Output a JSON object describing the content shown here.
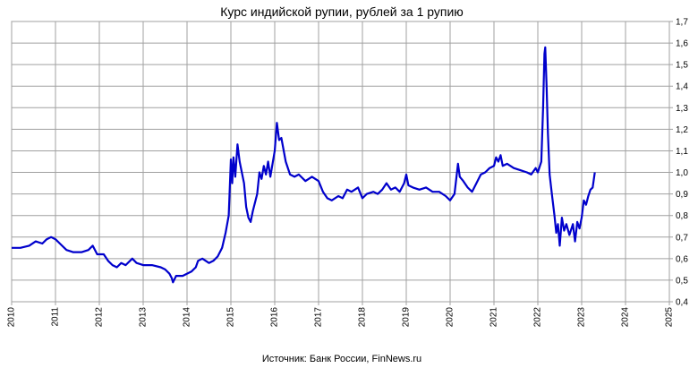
{
  "chart_data": {
    "type": "line",
    "title": "Курс индийской рупии, рублей за 1 рупию",
    "source": "Источник: Банк России, FinNews.ru",
    "xlabel": "",
    "ylabel": "",
    "xlim": [
      2010,
      2025
    ],
    "ylim": [
      0.4,
      1.7
    ],
    "grid": true,
    "y_axis_side": "right",
    "legend": "none",
    "x_ticks": [
      "2010",
      "2011",
      "2012",
      "2013",
      "2014",
      "2015",
      "2016",
      "2017",
      "2018",
      "2019",
      "2020",
      "2021",
      "2022",
      "2023",
      "2024",
      "2025"
    ],
    "y_ticks": [
      "0,4",
      "0,5",
      "0,6",
      "0,7",
      "0,8",
      "0,9",
      "1,0",
      "1,1",
      "1,2",
      "1,3",
      "1,4",
      "1,5",
      "1,6",
      "1,7"
    ],
    "series": [
      {
        "color": "#0000cc",
        "points": [
          [
            2010.0,
            0.65
          ],
          [
            2010.2,
            0.65
          ],
          [
            2010.4,
            0.66
          ],
          [
            2010.55,
            0.68
          ],
          [
            2010.7,
            0.67
          ],
          [
            2010.8,
            0.69
          ],
          [
            2010.9,
            0.7
          ],
          [
            2011.0,
            0.69
          ],
          [
            2011.1,
            0.67
          ],
          [
            2011.25,
            0.64
          ],
          [
            2011.4,
            0.63
          ],
          [
            2011.6,
            0.63
          ],
          [
            2011.75,
            0.64
          ],
          [
            2011.85,
            0.66
          ],
          [
            2011.95,
            0.62
          ],
          [
            2012.1,
            0.62
          ],
          [
            2012.2,
            0.59
          ],
          [
            2012.3,
            0.57
          ],
          [
            2012.4,
            0.56
          ],
          [
            2012.5,
            0.58
          ],
          [
            2012.6,
            0.57
          ],
          [
            2012.75,
            0.6
          ],
          [
            2012.85,
            0.58
          ],
          [
            2013.0,
            0.57
          ],
          [
            2013.2,
            0.57
          ],
          [
            2013.4,
            0.56
          ],
          [
            2013.5,
            0.55
          ],
          [
            2013.6,
            0.53
          ],
          [
            2013.65,
            0.51
          ],
          [
            2013.68,
            0.49
          ],
          [
            2013.75,
            0.52
          ],
          [
            2013.9,
            0.52
          ],
          [
            2014.1,
            0.54
          ],
          [
            2014.2,
            0.56
          ],
          [
            2014.25,
            0.59
          ],
          [
            2014.35,
            0.6
          ],
          [
            2014.5,
            0.58
          ],
          [
            2014.6,
            0.59
          ],
          [
            2014.7,
            0.61
          ],
          [
            2014.8,
            0.65
          ],
          [
            2014.88,
            0.72
          ],
          [
            2014.95,
            0.8
          ],
          [
            2015.0,
            1.06
          ],
          [
            2015.03,
            0.95
          ],
          [
            2015.06,
            1.07
          ],
          [
            2015.1,
            0.98
          ],
          [
            2015.15,
            1.13
          ],
          [
            2015.2,
            1.05
          ],
          [
            2015.3,
            0.95
          ],
          [
            2015.35,
            0.84
          ],
          [
            2015.4,
            0.79
          ],
          [
            2015.45,
            0.77
          ],
          [
            2015.5,
            0.82
          ],
          [
            2015.6,
            0.9
          ],
          [
            2015.65,
            1.0
          ],
          [
            2015.7,
            0.97
          ],
          [
            2015.75,
            1.03
          ],
          [
            2015.8,
            0.99
          ],
          [
            2015.85,
            1.05
          ],
          [
            2015.9,
            0.98
          ],
          [
            2016.0,
            1.1
          ],
          [
            2016.05,
            1.23
          ],
          [
            2016.1,
            1.15
          ],
          [
            2016.15,
            1.16
          ],
          [
            2016.25,
            1.05
          ],
          [
            2016.35,
            0.99
          ],
          [
            2016.45,
            0.98
          ],
          [
            2016.55,
            0.99
          ],
          [
            2016.7,
            0.96
          ],
          [
            2016.85,
            0.98
          ],
          [
            2017.0,
            0.96
          ],
          [
            2017.1,
            0.91
          ],
          [
            2017.2,
            0.88
          ],
          [
            2017.3,
            0.87
          ],
          [
            2017.45,
            0.89
          ],
          [
            2017.55,
            0.88
          ],
          [
            2017.65,
            0.92
          ],
          [
            2017.75,
            0.91
          ],
          [
            2017.9,
            0.93
          ],
          [
            2018.0,
            0.88
          ],
          [
            2018.1,
            0.9
          ],
          [
            2018.25,
            0.91
          ],
          [
            2018.35,
            0.9
          ],
          [
            2018.45,
            0.92
          ],
          [
            2018.55,
            0.95
          ],
          [
            2018.65,
            0.92
          ],
          [
            2018.75,
            0.93
          ],
          [
            2018.85,
            0.91
          ],
          [
            2018.95,
            0.95
          ],
          [
            2019.0,
            0.99
          ],
          [
            2019.05,
            0.94
          ],
          [
            2019.15,
            0.93
          ],
          [
            2019.3,
            0.92
          ],
          [
            2019.45,
            0.93
          ],
          [
            2019.6,
            0.91
          ],
          [
            2019.75,
            0.91
          ],
          [
            2019.9,
            0.89
          ],
          [
            2020.0,
            0.87
          ],
          [
            2020.1,
            0.9
          ],
          [
            2020.18,
            1.04
          ],
          [
            2020.22,
            0.98
          ],
          [
            2020.3,
            0.96
          ],
          [
            2020.4,
            0.93
          ],
          [
            2020.5,
            0.91
          ],
          [
            2020.6,
            0.95
          ],
          [
            2020.7,
            0.99
          ],
          [
            2020.8,
            1.0
          ],
          [
            2020.9,
            1.02
          ],
          [
            2021.0,
            1.03
          ],
          [
            2021.05,
            1.07
          ],
          [
            2021.1,
            1.05
          ],
          [
            2021.15,
            1.08
          ],
          [
            2021.2,
            1.03
          ],
          [
            2021.3,
            1.04
          ],
          [
            2021.45,
            1.02
          ],
          [
            2021.6,
            1.01
          ],
          [
            2021.75,
            1.0
          ],
          [
            2021.85,
            0.99
          ],
          [
            2021.95,
            1.02
          ],
          [
            2022.0,
            1.0
          ],
          [
            2022.08,
            1.05
          ],
          [
            2022.12,
            1.3
          ],
          [
            2022.15,
            1.55
          ],
          [
            2022.17,
            1.58
          ],
          [
            2022.2,
            1.4
          ],
          [
            2022.23,
            1.18
          ],
          [
            2022.27,
            0.99
          ],
          [
            2022.32,
            0.9
          ],
          [
            2022.38,
            0.8
          ],
          [
            2022.42,
            0.72
          ],
          [
            2022.46,
            0.76
          ],
          [
            2022.5,
            0.66
          ],
          [
            2022.55,
            0.79
          ],
          [
            2022.6,
            0.73
          ],
          [
            2022.65,
            0.76
          ],
          [
            2022.72,
            0.71
          ],
          [
            2022.8,
            0.76
          ],
          [
            2022.85,
            0.68
          ],
          [
            2022.9,
            0.77
          ],
          [
            2022.95,
            0.74
          ],
          [
            2023.0,
            0.79
          ],
          [
            2023.05,
            0.87
          ],
          [
            2023.1,
            0.85
          ],
          [
            2023.15,
            0.89
          ],
          [
            2023.2,
            0.92
          ],
          [
            2023.25,
            0.93
          ],
          [
            2023.3,
            1.0
          ]
        ]
      }
    ]
  }
}
